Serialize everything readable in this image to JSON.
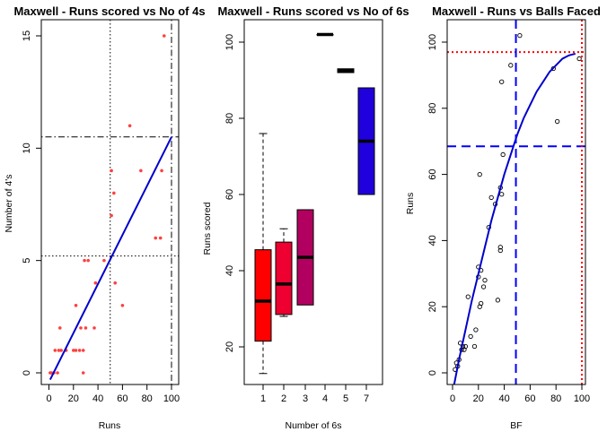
{
  "chart_data": [
    {
      "type": "scatter",
      "title": "Maxwell - Runs scored vs No of 4s",
      "xlabel": "Runs",
      "ylabel": "Number of 4's",
      "xlim": [
        0,
        100
      ],
      "ylim": [
        0,
        15
      ],
      "xticks": [
        0,
        20,
        40,
        60,
        80,
        100
      ],
      "yticks": [
        0,
        5,
        10,
        15
      ],
      "point_color": "#ff4040",
      "fit_color": "#0000cc",
      "points": [
        {
          "x": 1,
          "y": 0
        },
        {
          "x": 2,
          "y": 0
        },
        {
          "x": 4,
          "y": 0
        },
        {
          "x": 7,
          "y": 0
        },
        {
          "x": 5,
          "y": 1
        },
        {
          "x": 8,
          "y": 1
        },
        {
          "x": 10,
          "y": 1
        },
        {
          "x": 14,
          "y": 1
        },
        {
          "x": 9,
          "y": 2
        },
        {
          "x": 20,
          "y": 1
        },
        {
          "x": 22,
          "y": 1
        },
        {
          "x": 25,
          "y": 1
        },
        {
          "x": 28,
          "y": 1
        },
        {
          "x": 26,
          "y": 2
        },
        {
          "x": 22,
          "y": 3
        },
        {
          "x": 28,
          "y": 0
        },
        {
          "x": 30,
          "y": 2
        },
        {
          "x": 37,
          "y": 2
        },
        {
          "x": 38,
          "y": 4
        },
        {
          "x": 29,
          "y": 5
        },
        {
          "x": 32,
          "y": 5
        },
        {
          "x": 45,
          "y": 5
        },
        {
          "x": 54,
          "y": 4
        },
        {
          "x": 60,
          "y": 3
        },
        {
          "x": 51,
          "y": 7
        },
        {
          "x": 53,
          "y": 8
        },
        {
          "x": 51,
          "y": 9
        },
        {
          "x": 66,
          "y": 11
        },
        {
          "x": 75,
          "y": 9
        },
        {
          "x": 87,
          "y": 6
        },
        {
          "x": 91,
          "y": 6
        },
        {
          "x": 92,
          "y": 9
        },
        {
          "x": 94,
          "y": 15
        }
      ],
      "fit_line": {
        "x": [
          1,
          100
        ],
        "y": [
          -0.3,
          10.5
        ]
      },
      "hlines": [
        {
          "y": 5.2,
          "style": "dotted"
        },
        {
          "y": 10.5,
          "style": "dotdash"
        }
      ],
      "vlines": [
        {
          "x": 50,
          "style": "dotted"
        },
        {
          "x": 100,
          "style": "dotdash"
        }
      ]
    },
    {
      "type": "box",
      "title": "Maxwell - Runs scored vs No of 6s",
      "xlabel": "Number of 6s",
      "ylabel": "Runs scored",
      "ylim": [
        10,
        105
      ],
      "yticks": [
        20,
        40,
        60,
        80,
        100
      ],
      "categories": [
        "1",
        "2",
        "3",
        "4",
        "5",
        "7"
      ],
      "boxes": [
        {
          "label": "1",
          "min": 13,
          "q1": 21.5,
          "median": 32,
          "q3": 45.5,
          "max": 76,
          "color": "#ff0000"
        },
        {
          "label": "2",
          "min": 28,
          "q1": 28.5,
          "median": 36.5,
          "q3": 47.5,
          "max": 51,
          "color": "#ee0030"
        },
        {
          "label": "3",
          "min": 31,
          "q1": 31,
          "median": 43.5,
          "q3": 56,
          "max": 56,
          "color": "#b20060"
        },
        {
          "label": "4",
          "min": 102,
          "q1": 102,
          "median": 102,
          "q3": 102,
          "max": 102,
          "color": "#6a00a0"
        },
        {
          "label": "5",
          "min": 92,
          "q1": 92,
          "median": 92.5,
          "q3": 93,
          "max": 93,
          "color": "#3a00c8"
        },
        {
          "label": "7",
          "min": 60,
          "q1": 60,
          "median": 74,
          "q3": 88,
          "max": 88,
          "color": "#2000dd"
        }
      ]
    },
    {
      "type": "scatter",
      "title": "Maxwell - Runs vs Balls Faced",
      "xlabel": "BF",
      "ylabel": "Runs",
      "xlim": [
        0,
        100
      ],
      "ylim": [
        0,
        100
      ],
      "xticks": [
        0,
        20,
        40,
        60,
        80,
        100
      ],
      "yticks": [
        0,
        20,
        40,
        60,
        80,
        100
      ],
      "point_color": "#000000",
      "curve_color": "#0000cc",
      "points": [
        {
          "x": 2,
          "y": 1
        },
        {
          "x": 3,
          "y": 3
        },
        {
          "x": 4,
          "y": 2
        },
        {
          "x": 5,
          "y": 4
        },
        {
          "x": 6,
          "y": 9
        },
        {
          "x": 7,
          "y": 7
        },
        {
          "x": 8,
          "y": 8
        },
        {
          "x": 9,
          "y": 7
        },
        {
          "x": 10,
          "y": 8
        },
        {
          "x": 12,
          "y": 23
        },
        {
          "x": 14,
          "y": 11
        },
        {
          "x": 17,
          "y": 8
        },
        {
          "x": 18,
          "y": 13
        },
        {
          "x": 20,
          "y": 29
        },
        {
          "x": 20,
          "y": 32
        },
        {
          "x": 21,
          "y": 20
        },
        {
          "x": 22,
          "y": 21
        },
        {
          "x": 22,
          "y": 31
        },
        {
          "x": 24,
          "y": 26
        },
        {
          "x": 25,
          "y": 28
        },
        {
          "x": 21,
          "y": 60
        },
        {
          "x": 28,
          "y": 44
        },
        {
          "x": 30,
          "y": 53
        },
        {
          "x": 33,
          "y": 51
        },
        {
          "x": 35,
          "y": 22
        },
        {
          "x": 37,
          "y": 37
        },
        {
          "x": 37,
          "y": 38
        },
        {
          "x": 37,
          "y": 56
        },
        {
          "x": 38,
          "y": 54
        },
        {
          "x": 38,
          "y": 88
        },
        {
          "x": 39,
          "y": 66
        },
        {
          "x": 45,
          "y": 93
        },
        {
          "x": 52,
          "y": 102
        },
        {
          "x": 78,
          "y": 92
        },
        {
          "x": 81,
          "y": 76
        },
        {
          "x": 98,
          "y": 95
        }
      ],
      "curve": {
        "x": [
          0,
          5,
          10,
          15,
          20,
          25,
          30,
          35,
          40,
          45,
          50,
          55,
          60,
          65,
          70,
          75,
          80,
          85,
          90,
          95
        ],
        "y": [
          -6,
          4,
          13,
          22,
          30,
          38,
          46,
          53,
          60,
          66,
          72,
          77,
          81,
          85,
          88,
          91,
          93,
          95,
          96,
          96.5
        ]
      },
      "hlines": [
        {
          "y": 68.5,
          "style": "dashed",
          "color": "#0000ff"
        },
        {
          "y": 97,
          "style": "dotted",
          "color": "#ff0000"
        }
      ],
      "vlines": [
        {
          "x": 49,
          "style": "dashed",
          "color": "#0000ff"
        },
        {
          "x": 100,
          "style": "dotted",
          "color": "#ff0000"
        }
      ]
    }
  ]
}
